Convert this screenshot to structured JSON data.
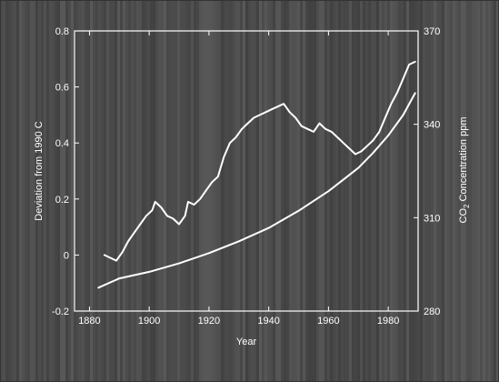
{
  "chart_data": {
    "type": "line",
    "title": "",
    "xlabel": "Year",
    "ylabel_left": "Deviation from 1990    C",
    "ylabel_right_prefix": "CO",
    "ylabel_right_subscript": "2",
    "ylabel_right_suffix": " Concentration ppm",
    "xlim": [
      1875,
      1990
    ],
    "ylim_left": [
      -0.2,
      0.8
    ],
    "ylim_right": [
      280,
      370
    ],
    "x_ticks": [
      1880,
      1900,
      1920,
      1940,
      1960,
      1980
    ],
    "x_tick_labels": [
      "1880",
      "1900",
      "1920",
      "1940",
      "1960",
      "1980"
    ],
    "y_left_ticks": [
      -0.2,
      0,
      0.2,
      0.4,
      0.6,
      0.8
    ],
    "y_left_tick_labels": [
      "-0.2",
      "0",
      "0.2",
      "0.4",
      "0.6",
      "0.8"
    ],
    "y_right_ticks": [
      280,
      310,
      340,
      370
    ],
    "y_right_tick_labels": [
      "280",
      "310",
      "340",
      "370"
    ],
    "grid": false,
    "series": [
      {
        "axis": "left",
        "x": [
          1885,
          1887,
          1889,
          1891,
          1893,
          1895,
          1897,
          1899,
          1901,
          1902,
          1904,
          1906,
          1908,
          1910,
          1912,
          1913,
          1915,
          1917,
          1919,
          1921,
          1923,
          1925,
          1927,
          1929,
          1931,
          1933,
          1935,
          1937,
          1939,
          1941,
          1943,
          1945,
          1947,
          1949,
          1951,
          1953,
          1955,
          1957,
          1959,
          1961,
          1963,
          1965,
          1967,
          1969,
          1971,
          1973,
          1975,
          1977,
          1979,
          1981,
          1983,
          1985,
          1987,
          1989
        ],
        "y": [
          0.0,
          -0.01,
          -0.02,
          0.01,
          0.05,
          0.08,
          0.11,
          0.14,
          0.16,
          0.19,
          0.17,
          0.14,
          0.13,
          0.11,
          0.14,
          0.19,
          0.18,
          0.2,
          0.23,
          0.26,
          0.28,
          0.35,
          0.4,
          0.42,
          0.45,
          0.47,
          0.49,
          0.5,
          0.51,
          0.52,
          0.53,
          0.54,
          0.51,
          0.49,
          0.46,
          0.45,
          0.44,
          0.47,
          0.45,
          0.44,
          0.42,
          0.4,
          0.38,
          0.36,
          0.37,
          0.39,
          0.41,
          0.44,
          0.49,
          0.54,
          0.58,
          0.63,
          0.68,
          0.69
        ]
      },
      {
        "axis": "right",
        "x": [
          1883,
          1890,
          1900,
          1910,
          1920,
          1930,
          1940,
          1950,
          1960,
          1970,
          1975,
          1980,
          1985,
          1989
        ],
        "y": [
          287.5,
          290.5,
          292.6,
          295.3,
          298.6,
          302.4,
          306.7,
          312.2,
          318.5,
          326.0,
          330.9,
          336.4,
          343.0,
          350.0
        ]
      }
    ]
  }
}
